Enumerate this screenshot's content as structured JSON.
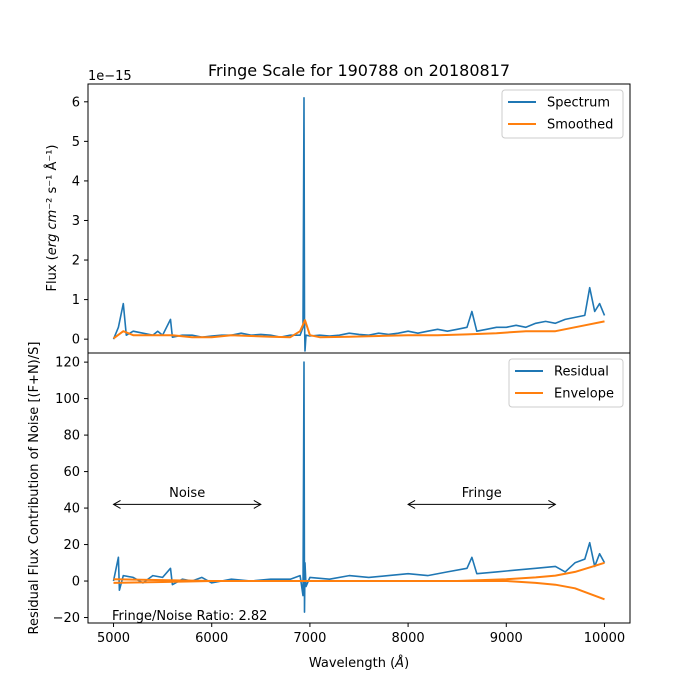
{
  "chart_data": [
    {
      "type": "line",
      "title": "Fringe Scale for 190788 on 20180817",
      "xlabel": "",
      "ylabel_prefix": "Flux (",
      "ylabel_units": "erg cm",
      "ylabel_tail": "⁻² s⁻¹ Å⁻¹)",
      "offset_text": "1e−15",
      "xlim": [
        4740,
        10260
      ],
      "ylim": [
        -0.35,
        6.45
      ],
      "xticks": [
        5000,
        6000,
        7000,
        8000,
        9000,
        10000
      ],
      "yticks": [
        0,
        1,
        2,
        3,
        4,
        5,
        6
      ],
      "legend_position": "top-right",
      "series": [
        {
          "name": "Spectrum",
          "color": "#1f77b4",
          "x": [
            5000,
            5050,
            5100,
            5130,
            5200,
            5300,
            5400,
            5450,
            5500,
            5580,
            5600,
            5700,
            5800,
            5900,
            6000,
            6100,
            6200,
            6300,
            6400,
            6500,
            6600,
            6700,
            6800,
            6900,
            6930,
            6940,
            6945,
            6950,
            6960,
            7000,
            7100,
            7200,
            7300,
            7400,
            7500,
            7600,
            7700,
            7800,
            7900,
            8000,
            8100,
            8200,
            8300,
            8400,
            8500,
            8600,
            8650,
            8700,
            8800,
            8900,
            9000,
            9100,
            9200,
            9300,
            9400,
            9500,
            9600,
            9700,
            9800,
            9850,
            9900,
            9950,
            10000
          ],
          "y": [
            0.0,
            0.3,
            0.9,
            0.1,
            0.2,
            0.15,
            0.1,
            0.2,
            0.1,
            0.5,
            0.05,
            0.1,
            0.1,
            0.05,
            0.08,
            0.1,
            0.1,
            0.15,
            0.1,
            0.12,
            0.1,
            0.05,
            0.1,
            0.1,
            0.3,
            6.1,
            0.5,
            -0.3,
            0.1,
            0.08,
            0.1,
            0.08,
            0.1,
            0.15,
            0.12,
            0.1,
            0.15,
            0.12,
            0.15,
            0.2,
            0.15,
            0.2,
            0.25,
            0.2,
            0.25,
            0.3,
            0.7,
            0.2,
            0.25,
            0.3,
            0.3,
            0.35,
            0.3,
            0.4,
            0.45,
            0.4,
            0.5,
            0.55,
            0.6,
            1.3,
            0.7,
            0.9,
            0.6
          ]
        },
        {
          "name": "Smoothed",
          "color": "#ff7f0e",
          "x": [
            5000,
            5100,
            5200,
            5400,
            5600,
            5800,
            6000,
            6200,
            6400,
            6600,
            6800,
            6900,
            6950,
            7000,
            7100,
            7400,
            7700,
            8000,
            8300,
            8600,
            8900,
            9200,
            9500,
            9800,
            10000
          ],
          "y": [
            0.02,
            0.2,
            0.1,
            0.1,
            0.1,
            0.05,
            0.05,
            0.1,
            0.08,
            0.06,
            0.05,
            0.2,
            0.48,
            0.1,
            0.05,
            0.06,
            0.08,
            0.1,
            0.1,
            0.12,
            0.15,
            0.2,
            0.2,
            0.35,
            0.45
          ]
        }
      ]
    },
    {
      "type": "line",
      "title": "",
      "xlabel_prefix": "Wavelength (",
      "xlabel_units": "Å",
      "xlabel_tail": ")",
      "ylabel": "Residual Flux Contribution of Noise [(F+N)/S]",
      "xlim": [
        4740,
        10260
      ],
      "ylim": [
        -23,
        125
      ],
      "xticks": [
        5000,
        6000,
        7000,
        8000,
        9000,
        10000
      ],
      "yticks": [
        -20,
        0,
        20,
        40,
        60,
        80,
        100,
        120
      ],
      "legend_position": "top-right",
      "series": [
        {
          "name": "Residual",
          "color": "#1f77b4",
          "x": [
            5000,
            5050,
            5060,
            5100,
            5200,
            5300,
            5400,
            5500,
            5580,
            5600,
            5700,
            5800,
            5900,
            6000,
            6200,
            6400,
            6600,
            6800,
            6900,
            6930,
            6940,
            6945,
            6950,
            6960,
            7000,
            7200,
            7400,
            7600,
            7800,
            8000,
            8200,
            8400,
            8600,
            8650,
            8700,
            8900,
            9100,
            9300,
            9500,
            9600,
            9700,
            9800,
            9850,
            9900,
            9950,
            10000
          ],
          "y": [
            0,
            13,
            -5,
            3,
            2,
            -1,
            3,
            2,
            7,
            -2,
            1,
            0,
            2,
            -1,
            1,
            0,
            1,
            1,
            3,
            -8,
            120,
            -17,
            10,
            -3,
            2,
            1,
            3,
            2,
            3,
            4,
            3,
            5,
            7,
            13,
            4,
            5,
            6,
            7,
            8,
            5,
            10,
            12,
            21,
            8,
            15,
            10
          ]
        },
        {
          "name": "Envelope",
          "color": "#ff7f0e",
          "x": [
            5000,
            5500,
            6000,
            6500,
            7000,
            7500,
            8000,
            8500,
            9000,
            9300,
            9500,
            9700,
            9850,
            10000
          ],
          "y": [
            -1,
            -0.5,
            0,
            0,
            0,
            0,
            0,
            0,
            0,
            -1,
            -2,
            -4,
            -7,
            -10
          ]
        },
        {
          "name": "",
          "color": "#ff7f0e",
          "x": [
            5000,
            5500,
            6000,
            6500,
            7000,
            7500,
            8000,
            8500,
            9000,
            9300,
            9500,
            9700,
            9850,
            10000
          ],
          "y": [
            1,
            0.5,
            0,
            0,
            0,
            0,
            0,
            0,
            1,
            2,
            3,
            5,
            7.5,
            10
          ]
        }
      ],
      "annotations": [
        {
          "text": "Noise",
          "x_from": 5000,
          "x_to": 6500,
          "y": 42,
          "label_x": 5750,
          "label_y": 46
        },
        {
          "text": "Fringe",
          "x_from": 8000,
          "x_to": 9500,
          "y": 42,
          "label_x": 8750,
          "label_y": 46
        }
      ],
      "footer_text": "Fringe/Noise Ratio: 2.82"
    }
  ]
}
